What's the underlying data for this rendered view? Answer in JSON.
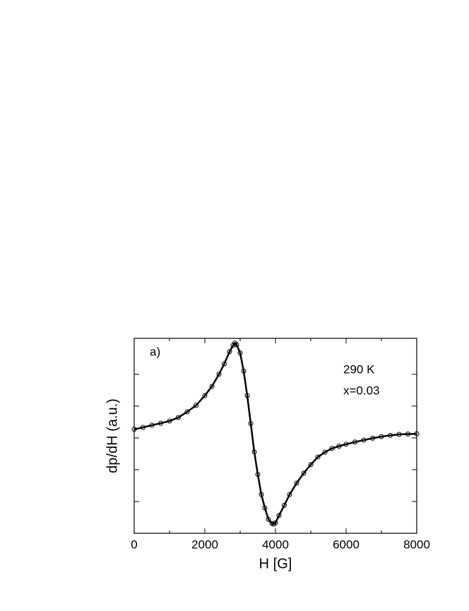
{
  "chart_data": {
    "type": "line",
    "marker": "open-circle",
    "color": "#000000",
    "annotations": [
      "a)",
      "290 K",
      "x=0.03"
    ],
    "xlabel": "H [G]",
    "ylabel": "dp/dH (a.u.)",
    "x": [
      0,
      250,
      500,
      750,
      1000,
      1250,
      1500,
      1750,
      2000,
      2200,
      2400,
      2550,
      2700,
      2800,
      2850,
      2900,
      3000,
      3100,
      3200,
      3300,
      3400,
      3500,
      3600,
      3700,
      3800,
      3900,
      3950,
      4000,
      4100,
      4250,
      4400,
      4600,
      4800,
      5000,
      5200,
      5400,
      5600,
      5800,
      6000,
      6250,
      6500,
      6750,
      7000,
      7250,
      7500,
      7750,
      8000
    ],
    "values": [
      3.27,
      3.33,
      3.4,
      3.46,
      3.53,
      3.64,
      3.82,
      4.02,
      4.33,
      4.62,
      5.0,
      5.33,
      5.71,
      5.91,
      5.98,
      5.93,
      5.67,
      5.1,
      4.33,
      3.45,
      2.56,
      1.85,
      1.22,
      0.8,
      0.44,
      0.31,
      0.29,
      0.33,
      0.56,
      0.88,
      1.22,
      1.58,
      1.89,
      2.16,
      2.4,
      2.55,
      2.67,
      2.74,
      2.8,
      2.87,
      2.93,
      2.99,
      3.04,
      3.08,
      3.11,
      3.12,
      3.13
    ],
    "xlim": [
      0,
      8000
    ],
    "xticks": [
      0,
      2000,
      4000,
      6000,
      8000
    ],
    "xminorticks": [
      1000,
      3000,
      5000,
      7000
    ],
    "ylim": [
      0,
      6.13
    ],
    "yticks": [
      1,
      2,
      3,
      4,
      5
    ]
  }
}
